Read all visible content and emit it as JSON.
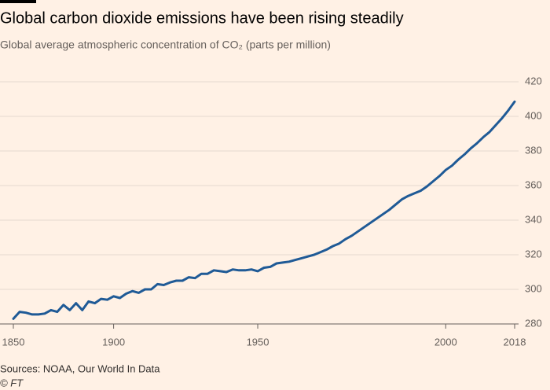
{
  "chart_data": {
    "type": "line",
    "title": "Global carbon dioxide emissions have been rising steadily",
    "subtitle": "Global average atmospheric concentration of CO₂ (parts per million)",
    "source": "Sources: NOAA, Our World In Data",
    "credit": "© FT",
    "categories": [
      "1850",
      null,
      null,
      null,
      null,
      null,
      null,
      null,
      null,
      null,
      null,
      null,
      null,
      null,
      null,
      null,
      "1900",
      null,
      null,
      null,
      null,
      null,
      null,
      null,
      null,
      null,
      null,
      null,
      null,
      null,
      null,
      null,
      null,
      null,
      null,
      null,
      null,
      null,
      null,
      "1950",
      null,
      null,
      null,
      null,
      null,
      null,
      null,
      null,
      null,
      null,
      null,
      null,
      null,
      null,
      null,
      null,
      null,
      null,
      null,
      null,
      null,
      null,
      null,
      null,
      null,
      null,
      null,
      null,
      null,
      "2000",
      null,
      null,
      null,
      null,
      null,
      null,
      null,
      null,
      null,
      null,
      "2018"
    ],
    "series": [
      {
        "name": "CO₂ concentration",
        "color": "#1f5a96",
        "values": [
          283,
          287,
          286.5,
          285.5,
          285.5,
          286,
          288,
          287,
          291,
          288,
          292,
          288,
          293,
          292,
          294.5,
          294,
          296,
          295,
          297.5,
          299,
          298,
          300,
          300,
          303,
          302.5,
          304,
          305,
          305,
          307,
          306.5,
          309,
          309,
          311,
          310.5,
          310,
          311.5,
          311,
          311,
          311.5,
          310.5,
          312.5,
          313,
          315,
          315.5,
          316,
          317,
          318,
          319,
          320,
          321.5,
          323,
          325,
          326.5,
          329,
          331,
          333.5,
          336,
          338.5,
          341,
          343.5,
          346,
          349,
          352,
          354,
          355.5,
          357,
          359.5,
          362.5,
          365.5,
          369,
          371.5,
          375,
          378,
          381.5,
          384.5,
          388,
          391,
          395,
          399,
          403.5,
          408.5
        ]
      }
    ],
    "ylim": [
      280,
      420
    ],
    "yticks": [
      280,
      300,
      320,
      340,
      360,
      380,
      400,
      420
    ],
    "grid": true
  }
}
